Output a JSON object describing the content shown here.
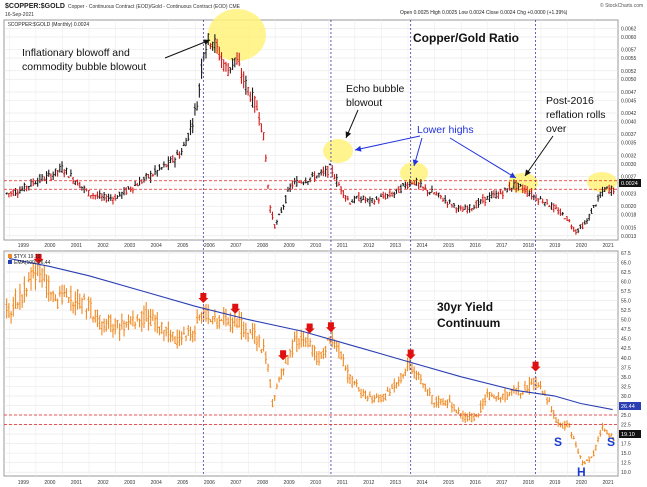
{
  "header": {
    "symbol": "$COPPER:$GOLD",
    "description": "Copper - Continuous Contract (EOD)/Gold - Continuous Contract (EOD)  CME",
    "date": "16-Sep-2021",
    "ohlc": "Open 0.0025  High 0.0025  Low 0.0024  Close 0.0024  Chg +0.0000 (+1.39%)",
    "watermark": "© StockCharts.com",
    "legend_main": "$COPPER:$GOLD (Monthly) 0.0024"
  },
  "annotations": {
    "blowoff": "Inflationary blowoff and commodity bubble blowout",
    "ratio_title": "Copper/Gold Ratio",
    "echo": "Echo bubble blowout",
    "lower_highs": "Lower highs",
    "post2016": "Post-2016 reflation rolls over",
    "yield_title": "30yr Yield Continuum",
    "s_left": "S",
    "h": "H",
    "s_right": "S"
  },
  "lower_legend": {
    "tyx": "$TYX 19.10",
    "ema": "EMA(100) 26.44"
  },
  "price_tags": {
    "ratio_last": "0.0024",
    "tyx_last": "19.10",
    "ema_last": "26.44"
  },
  "colors": {
    "up_bar": "#1a1a1a",
    "down_bar": "#d11a1a",
    "tyx_bar": "#f08a24",
    "ema_line": "#2b3fb3",
    "highlight": "#fff27a",
    "marker_arrow": "#e01010",
    "vline": "#3a3aa8",
    "hline": "#e02020"
  },
  "chart_data": [
    {
      "type": "bar",
      "title": "Copper/Gold Ratio",
      "series_label": "$COPPER:$GOLD (Monthly)",
      "x_ticks": [
        "1999",
        "2000",
        "2001",
        "2002",
        "2003",
        "2004",
        "2005",
        "2006",
        "2007",
        "2008",
        "2009",
        "2010",
        "2011",
        "2012",
        "2013",
        "2014",
        "2015",
        "2016",
        "2017",
        "2018",
        "2019",
        "2020",
        "2021"
      ],
      "y_ticks": [
        "0.0013",
        "0.0015",
        "0.0018",
        "0.0020",
        "0.0023",
        "0.0025",
        "0.0027",
        "0.0030",
        "0.0032",
        "0.0035",
        "0.0037",
        "0.0040",
        "0.0042",
        "0.0045",
        "0.0047",
        "0.0050",
        "0.0052",
        "0.0055",
        "0.0057",
        "0.0060",
        "0.0062"
      ],
      "ylim": [
        0.0012,
        0.0064
      ],
      "x": [
        1999.0,
        1999.5,
        2000.0,
        2000.5,
        2001.0,
        2001.5,
        2002.0,
        2002.5,
        2003.0,
        2003.5,
        2004.0,
        2004.5,
        2005.0,
        2005.5,
        2005.8,
        2006.1,
        2006.3,
        2006.6,
        2006.9,
        2007.2,
        2007.5,
        2007.8,
        2008.1,
        2008.4,
        2008.6,
        2008.8,
        2009.0,
        2009.3,
        2009.6,
        2010.0,
        2010.5,
        2010.9,
        2011.1,
        2011.4,
        2011.8,
        2012.2,
        2012.6,
        2013.0,
        2013.5,
        2013.9,
        2014.2,
        2014.6,
        2015.0,
        2015.5,
        2016.0,
        2016.5,
        2017.0,
        2017.5,
        2018.0,
        2018.4,
        2018.8,
        2019.2,
        2019.6,
        2020.0,
        2020.3,
        2020.7,
        2021.0,
        2021.4,
        2021.7
      ],
      "values": [
        0.0023,
        0.0024,
        0.0026,
        0.0027,
        0.0029,
        0.0026,
        0.0023,
        0.0022,
        0.0022,
        0.0024,
        0.0026,
        0.0028,
        0.003,
        0.0033,
        0.0038,
        0.0045,
        0.0057,
        0.006,
        0.0056,
        0.0052,
        0.0055,
        0.005,
        0.0046,
        0.0042,
        0.0035,
        0.002,
        0.0015,
        0.002,
        0.0025,
        0.0026,
        0.0027,
        0.0028,
        0.0029,
        0.0025,
        0.0021,
        0.0022,
        0.0021,
        0.0022,
        0.0023,
        0.0025,
        0.0026,
        0.0024,
        0.0023,
        0.0021,
        0.0019,
        0.002,
        0.0022,
        0.0023,
        0.0025,
        0.0024,
        0.0022,
        0.0021,
        0.0019,
        0.0017,
        0.0014,
        0.0016,
        0.002,
        0.0024,
        0.0024
      ],
      "reference_lines": [
        0.0026,
        0.0024
      ]
    },
    {
      "type": "line",
      "title": "30yr Yield Continuum",
      "x_ticks": [
        "1999",
        "2000",
        "2001",
        "2002",
        "2003",
        "2004",
        "2005",
        "2006",
        "2007",
        "2008",
        "2009",
        "2010",
        "2011",
        "2012",
        "2013",
        "2014",
        "2015",
        "2016",
        "2017",
        "2018",
        "2019",
        "2020",
        "2021"
      ],
      "y_ticks": [
        "10.0",
        "12.5",
        "15.0",
        "17.5",
        "20.0",
        "22.5",
        "25.0",
        "27.5",
        "30.0",
        "32.5",
        "35.0",
        "37.5",
        "40.0",
        "42.5",
        "45.0",
        "47.5",
        "50.0",
        "52.5",
        "55.0",
        "57.5",
        "60.0",
        "62.5",
        "65.0",
        "67.5"
      ],
      "ylim": [
        9,
        68
      ],
      "series": [
        {
          "name": "$TYX",
          "x": [
            1999.0,
            1999.5,
            2000.0,
            2000.4,
            2000.8,
            2001.3,
            2001.8,
            2002.3,
            2002.8,
            2003.3,
            2003.7,
            2004.2,
            2004.8,
            2005.3,
            2005.8,
            2006.3,
            2006.8,
            2007.3,
            2007.8,
            2008.3,
            2008.7,
            2008.9,
            2009.3,
            2009.8,
            2010.3,
            2010.7,
            2011.0,
            2011.3,
            2011.8,
            2012.3,
            2012.7,
            2013.2,
            2013.7,
            2014.0,
            2014.5,
            2015.0,
            2015.5,
            2016.0,
            2016.5,
            2017.0,
            2017.5,
            2018.0,
            2018.5,
            2018.8,
            2019.2,
            2019.7,
            2020.0,
            2020.3,
            2020.6,
            2021.0,
            2021.3,
            2021.7
          ],
          "values": [
            52,
            57,
            63,
            60,
            55,
            56,
            55,
            50,
            49,
            48,
            50,
            51,
            47,
            45,
            46,
            52,
            50,
            50,
            48,
            45,
            40,
            28,
            37,
            45,
            44,
            39,
            45,
            43,
            35,
            30,
            29,
            30,
            35,
            38,
            34,
            28,
            29,
            25,
            24,
            30,
            30,
            31,
            32,
            34,
            30,
            22,
            23,
            17,
            12,
            15,
            22,
            19
          ]
        },
        {
          "name": "EMA(100)",
          "x": [
            1999.0,
            2000.5,
            2002.0,
            2004.0,
            2006.0,
            2008.0,
            2010.0,
            2012.0,
            2014.0,
            2016.0,
            2018.0,
            2019.5,
            2020.5,
            2021.7
          ],
          "values": [
            66.0,
            64.0,
            61.5,
            57.5,
            53.5,
            50.0,
            47.0,
            43.0,
            39.0,
            35.0,
            31.5,
            30.0,
            28.0,
            26.4
          ]
        }
      ],
      "reference_lines": [
        25,
        22.5
      ],
      "arrow_markers_x": [
        2000.1,
        2006.3,
        2007.5,
        2009.3,
        2010.3,
        2011.1,
        2014.1,
        2018.8
      ]
    }
  ]
}
